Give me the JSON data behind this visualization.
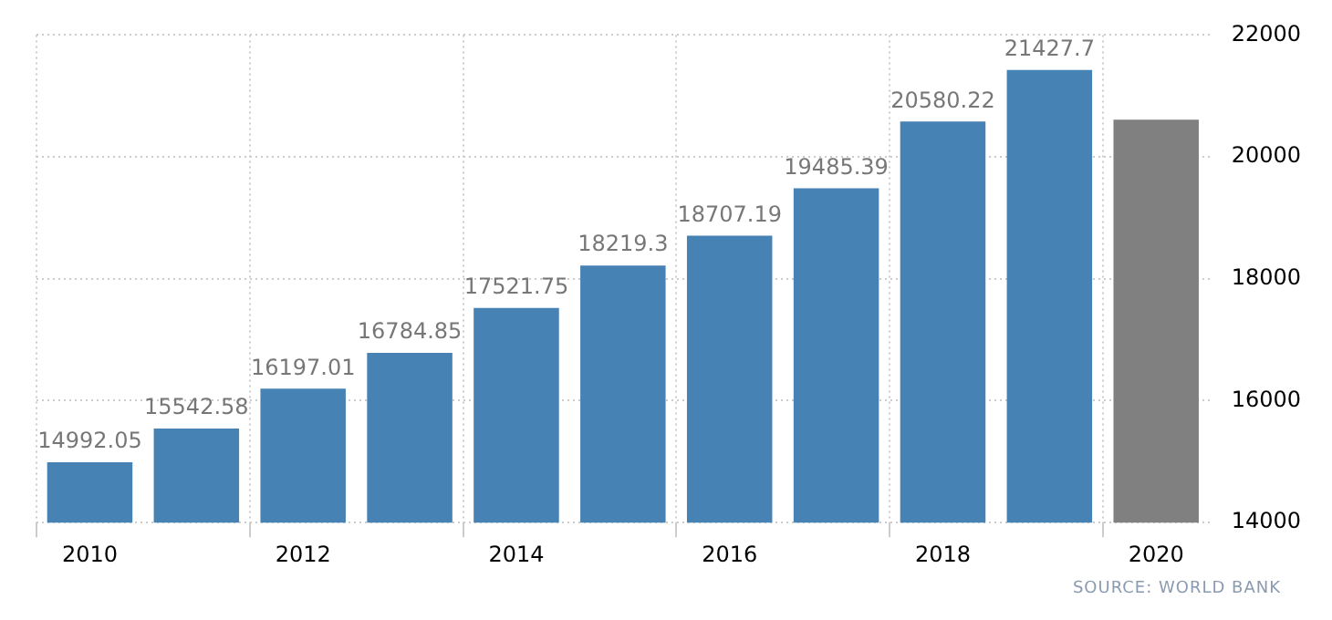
{
  "chart_data": {
    "type": "bar",
    "categories": [
      "2010",
      null,
      "2012",
      null,
      "2014",
      null,
      "2016",
      null,
      "2018",
      null,
      "2020"
    ],
    "values": [
      14992.05,
      15542.58,
      16197.01,
      16784.85,
      17521.75,
      18219.3,
      18707.19,
      19485.39,
      20580.22,
      21427.7,
      20610
    ],
    "colors": [
      "#4682b4",
      "#4682b4",
      "#4682b4",
      "#4682b4",
      "#4682b4",
      "#4682b4",
      "#4682b4",
      "#4682b4",
      "#4682b4",
      "#4682b4",
      "#808080"
    ],
    "value_labels": [
      "14992.05",
      "15542.58",
      "16197.01",
      "16784.85",
      "17521.75",
      "18219.3",
      "18707.19",
      "19485.39",
      "20580.22",
      "21427.7",
      null
    ],
    "ylim": [
      14000,
      22000
    ],
    "yticks": [
      14000,
      16000,
      18000,
      20000,
      22000
    ],
    "grid": true,
    "annotations": [
      "SOURCE: WORLD BANK"
    ]
  }
}
